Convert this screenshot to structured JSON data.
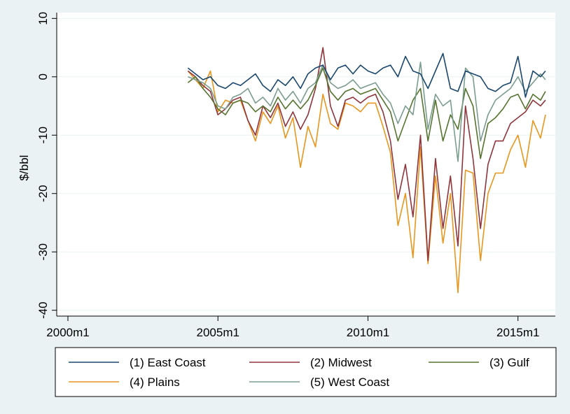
{
  "chart_data": {
    "type": "line",
    "ylabel": "$/bbl",
    "xlabel": "",
    "xlim": [
      "2000m1",
      "2015m12"
    ],
    "ylim": [
      -41,
      11
    ],
    "x_ticks": [
      "2000m1",
      "2005m1",
      "2010m1",
      "2015m1"
    ],
    "y_ticks": [
      10,
      0,
      -10,
      -20,
      -30,
      -40
    ],
    "grid": "horizontal",
    "legend_position": "bottom",
    "colors": {
      "plot_background": "#ffffff",
      "page_background": "#eaf2f3",
      "grid": "#eaf2f3"
    },
    "series": [
      {
        "name": "(1) East Coast",
        "color": "#1a476f",
        "points": [
          [
            "2004m1",
            1.5
          ],
          [
            "2004m4",
            0.5
          ],
          [
            "2004m7",
            -0.5
          ],
          [
            "2004m10",
            0.0
          ],
          [
            "2005m1",
            -1.5
          ],
          [
            "2005m4",
            -2.0
          ],
          [
            "2005m7",
            -1.0
          ],
          [
            "2005m10",
            -1.5
          ],
          [
            "2006m1",
            -0.5
          ],
          [
            "2006m4",
            0.5
          ],
          [
            "2006m7",
            -1.5
          ],
          [
            "2006m10",
            -2.5
          ],
          [
            "2007m1",
            -0.5
          ],
          [
            "2007m4",
            -1.5
          ],
          [
            "2007m7",
            0.0
          ],
          [
            "2007m10",
            -2.0
          ],
          [
            "2008m1",
            0.5
          ],
          [
            "2008m4",
            1.5
          ],
          [
            "2008m7",
            2.0
          ],
          [
            "2008m10",
            -0.5
          ],
          [
            "2009m1",
            1.5
          ],
          [
            "2009m4",
            2.0
          ],
          [
            "2009m7",
            0.5
          ],
          [
            "2009m10",
            2.0
          ],
          [
            "2010m1",
            1.0
          ],
          [
            "2010m4",
            0.5
          ],
          [
            "2010m7",
            1.5
          ],
          [
            "2010m10",
            2.0
          ],
          [
            "2011m1",
            0.0
          ],
          [
            "2011m4",
            3.5
          ],
          [
            "2011m7",
            1.0
          ],
          [
            "2011m10",
            0.5
          ],
          [
            "2012m1",
            -2.0
          ],
          [
            "2012m4",
            1.0
          ],
          [
            "2012m7",
            4.0
          ],
          [
            "2012m10",
            -2.0
          ],
          [
            "2013m1",
            -2.5
          ],
          [
            "2013m4",
            1.0
          ],
          [
            "2013m7",
            0.5
          ],
          [
            "2013m10",
            0.0
          ],
          [
            "2014m1",
            -2.0
          ],
          [
            "2014m4",
            -2.5
          ],
          [
            "2014m7",
            -1.5
          ],
          [
            "2014m10",
            -1.0
          ],
          [
            "2015m1",
            3.5
          ],
          [
            "2015m4",
            -3.5
          ],
          [
            "2015m7",
            1.0
          ],
          [
            "2015m10",
            0.0
          ],
          [
            "2015m12",
            1.0
          ]
        ]
      },
      {
        "name": "(2) Midwest",
        "color": "#90353b",
        "points": [
          [
            "2004m1",
            1.0
          ],
          [
            "2004m4",
            0.0
          ],
          [
            "2004m7",
            -1.5
          ],
          [
            "2004m10",
            -2.5
          ],
          [
            "2005m1",
            -6.5
          ],
          [
            "2005m4",
            -5.5
          ],
          [
            "2005m7",
            -4.0
          ],
          [
            "2005m10",
            -3.5
          ],
          [
            "2006m1",
            -7.5
          ],
          [
            "2006m4",
            -10.0
          ],
          [
            "2006m7",
            -5.0
          ],
          [
            "2006m10",
            -7.0
          ],
          [
            "2007m1",
            -4.5
          ],
          [
            "2007m4",
            -8.5
          ],
          [
            "2007m7",
            -6.0
          ],
          [
            "2007m10",
            -9.0
          ],
          [
            "2008m1",
            -6.5
          ],
          [
            "2008m4",
            -2.0
          ],
          [
            "2008m7",
            5.0
          ],
          [
            "2008m10",
            -5.0
          ],
          [
            "2009m1",
            -8.5
          ],
          [
            "2009m4",
            -4.0
          ],
          [
            "2009m7",
            -3.5
          ],
          [
            "2009m10",
            -4.5
          ],
          [
            "2010m1",
            -3.5
          ],
          [
            "2010m4",
            -3.0
          ],
          [
            "2010m7",
            -6.0
          ],
          [
            "2010m10",
            -11.0
          ],
          [
            "2011m1",
            -21.0
          ],
          [
            "2011m4",
            -15.0
          ],
          [
            "2011m7",
            -24.0
          ],
          [
            "2011m10",
            -10.0
          ],
          [
            "2012m1",
            -31.5
          ],
          [
            "2012m4",
            -14.0
          ],
          [
            "2012m7",
            -26.0
          ],
          [
            "2012m10",
            -17.0
          ],
          [
            "2013m1",
            -29.0
          ],
          [
            "2013m4",
            -5.0
          ],
          [
            "2013m7",
            -14.0
          ],
          [
            "2013m10",
            -26.0
          ],
          [
            "2014m1",
            -15.0
          ],
          [
            "2014m4",
            -11.0
          ],
          [
            "2014m7",
            -11.0
          ],
          [
            "2014m10",
            -8.0
          ],
          [
            "2015m1",
            -7.0
          ],
          [
            "2015m4",
            -6.0
          ],
          [
            "2015m7",
            -4.0
          ],
          [
            "2015m10",
            -5.0
          ],
          [
            "2015m12",
            -4.0
          ]
        ]
      },
      {
        "name": "(3) Gulf",
        "color": "#55752f",
        "points": [
          [
            "2004m1",
            -1.0
          ],
          [
            "2004m4",
            0.0
          ],
          [
            "2004m7",
            -2.0
          ],
          [
            "2004m10",
            -3.5
          ],
          [
            "2005m1",
            -5.5
          ],
          [
            "2005m4",
            -6.5
          ],
          [
            "2005m7",
            -4.5
          ],
          [
            "2005m10",
            -4.0
          ],
          [
            "2006m1",
            -4.5
          ],
          [
            "2006m4",
            -6.0
          ],
          [
            "2006m7",
            -5.0
          ],
          [
            "2006m10",
            -6.0
          ],
          [
            "2007m1",
            -3.5
          ],
          [
            "2007m4",
            -5.5
          ],
          [
            "2007m7",
            -4.0
          ],
          [
            "2007m10",
            -5.5
          ],
          [
            "2008m1",
            -4.0
          ],
          [
            "2008m4",
            -1.5
          ],
          [
            "2008m7",
            1.5
          ],
          [
            "2008m10",
            -2.5
          ],
          [
            "2009m1",
            -4.0
          ],
          [
            "2009m4",
            -2.5
          ],
          [
            "2009m7",
            -2.0
          ],
          [
            "2009m10",
            -3.0
          ],
          [
            "2010m1",
            -2.5
          ],
          [
            "2010m4",
            -2.0
          ],
          [
            "2010m7",
            -4.0
          ],
          [
            "2010m10",
            -6.0
          ],
          [
            "2011m1",
            -11.0
          ],
          [
            "2011m4",
            -7.5
          ],
          [
            "2011m7",
            -4.0
          ],
          [
            "2011m10",
            -2.0
          ],
          [
            "2012m1",
            -11.0
          ],
          [
            "2012m4",
            -4.0
          ],
          [
            "2012m7",
            -11.0
          ],
          [
            "2012m10",
            -6.5
          ],
          [
            "2013m1",
            -9.0
          ],
          [
            "2013m4",
            -2.0
          ],
          [
            "2013m7",
            -5.0
          ],
          [
            "2013m10",
            -14.0
          ],
          [
            "2014m1",
            -8.0
          ],
          [
            "2014m4",
            -7.0
          ],
          [
            "2014m7",
            -5.5
          ],
          [
            "2014m10",
            -3.5
          ],
          [
            "2015m1",
            -3.0
          ],
          [
            "2015m4",
            -5.5
          ],
          [
            "2015m7",
            -3.0
          ],
          [
            "2015m10",
            -4.0
          ],
          [
            "2015m12",
            -2.5
          ]
        ]
      },
      {
        "name": "(4) Plains",
        "color": "#e8961e",
        "points": [
          [
            "2004m1",
            1.0
          ],
          [
            "2004m4",
            -0.5
          ],
          [
            "2004m7",
            -2.0
          ],
          [
            "2004m10",
            1.0
          ],
          [
            "2005m1",
            -6.0
          ],
          [
            "2005m4",
            -4.0
          ],
          [
            "2005m7",
            -4.5
          ],
          [
            "2005m10",
            -4.0
          ],
          [
            "2006m1",
            -7.5
          ],
          [
            "2006m4",
            -11.0
          ],
          [
            "2006m7",
            -6.0
          ],
          [
            "2006m10",
            -8.0
          ],
          [
            "2007m1",
            -5.0
          ],
          [
            "2007m4",
            -10.5
          ],
          [
            "2007m7",
            -7.0
          ],
          [
            "2007m10",
            -15.5
          ],
          [
            "2008m1",
            -8.5
          ],
          [
            "2008m4",
            -12.0
          ],
          [
            "2008m7",
            -3.0
          ],
          [
            "2008m10",
            -8.0
          ],
          [
            "2009m1",
            -9.0
          ],
          [
            "2009m4",
            -4.5
          ],
          [
            "2009m7",
            -5.0
          ],
          [
            "2009m10",
            -6.0
          ],
          [
            "2010m1",
            -4.5
          ],
          [
            "2010m4",
            -4.5
          ],
          [
            "2010m7",
            -8.5
          ],
          [
            "2010m10",
            -13.0
          ],
          [
            "2011m1",
            -25.5
          ],
          [
            "2011m4",
            -20.0
          ],
          [
            "2011m7",
            -31.0
          ],
          [
            "2011m10",
            -12.0
          ],
          [
            "2012m1",
            -32.0
          ],
          [
            "2012m4",
            -17.0
          ],
          [
            "2012m7",
            -28.5
          ],
          [
            "2012m10",
            -20.0
          ],
          [
            "2013m1",
            -37.0
          ],
          [
            "2013m4",
            -16.0
          ],
          [
            "2013m7",
            -16.5
          ],
          [
            "2013m10",
            -31.5
          ],
          [
            "2014m1",
            -20.0
          ],
          [
            "2014m4",
            -16.5
          ],
          [
            "2014m7",
            -16.5
          ],
          [
            "2014m10",
            -12.5
          ],
          [
            "2015m1",
            -10.0
          ],
          [
            "2015m4",
            -15.5
          ],
          [
            "2015m7",
            -7.5
          ],
          [
            "2015m10",
            -10.5
          ],
          [
            "2015m12",
            -6.5
          ]
        ]
      },
      {
        "name": "(5) West Coast",
        "color": "#7b9d8f",
        "points": [
          [
            "2004m1",
            0.0
          ],
          [
            "2004m4",
            -0.5
          ],
          [
            "2004m7",
            -1.0
          ],
          [
            "2004m10",
            -2.0
          ],
          [
            "2005m1",
            -5.0
          ],
          [
            "2005m4",
            -5.5
          ],
          [
            "2005m7",
            -3.5
          ],
          [
            "2005m10",
            -3.0
          ],
          [
            "2006m1",
            -2.0
          ],
          [
            "2006m4",
            -4.5
          ],
          [
            "2006m7",
            -3.5
          ],
          [
            "2006m10",
            -5.0
          ],
          [
            "2007m1",
            -2.0
          ],
          [
            "2007m4",
            -4.0
          ],
          [
            "2007m7",
            -2.5
          ],
          [
            "2007m10",
            -4.5
          ],
          [
            "2008m1",
            -2.0
          ],
          [
            "2008m4",
            -1.0
          ],
          [
            "2008m7",
            2.0
          ],
          [
            "2008m10",
            -1.0
          ],
          [
            "2009m1",
            -2.0
          ],
          [
            "2009m4",
            -1.5
          ],
          [
            "2009m7",
            -0.5
          ],
          [
            "2009m10",
            -2.0
          ],
          [
            "2010m1",
            -1.5
          ],
          [
            "2010m4",
            -1.0
          ],
          [
            "2010m7",
            -3.0
          ],
          [
            "2010m10",
            -4.5
          ],
          [
            "2011m1",
            -8.0
          ],
          [
            "2011m4",
            -5.0
          ],
          [
            "2011m7",
            -6.5
          ],
          [
            "2011m10",
            2.5
          ],
          [
            "2012m1",
            -9.0
          ],
          [
            "2012m4",
            -3.0
          ],
          [
            "2012m7",
            -5.0
          ],
          [
            "2012m10",
            -4.0
          ],
          [
            "2013m1",
            -14.5
          ],
          [
            "2013m4",
            1.5
          ],
          [
            "2013m7",
            0.0
          ],
          [
            "2013m10",
            -11.0
          ],
          [
            "2014m1",
            -6.5
          ],
          [
            "2014m4",
            -4.0
          ],
          [
            "2014m7",
            -3.0
          ],
          [
            "2014m10",
            -2.0
          ],
          [
            "2015m1",
            0.0
          ],
          [
            "2015m4",
            -2.5
          ],
          [
            "2015m7",
            -1.0
          ],
          [
            "2015m10",
            0.5
          ],
          [
            "2015m12",
            -0.5
          ]
        ]
      }
    ]
  }
}
